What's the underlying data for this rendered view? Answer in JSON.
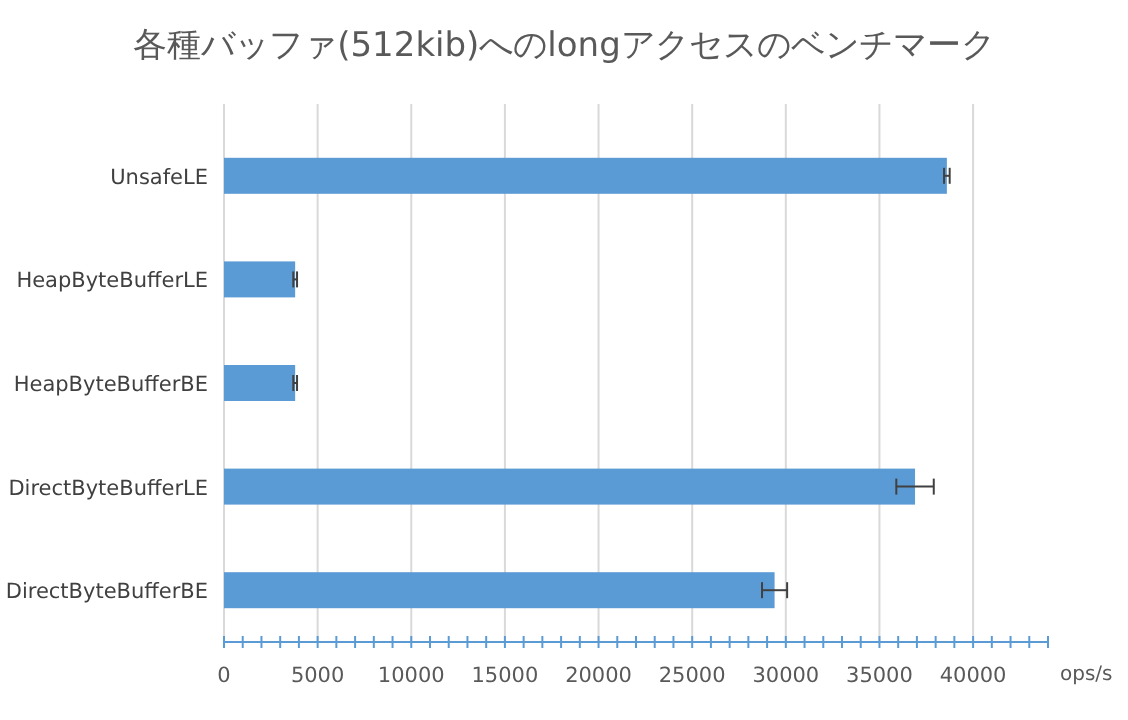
{
  "chart_data": {
    "type": "bar",
    "orientation": "horizontal",
    "title": "各種バッファ(512kib)へのlongアクセスのベンチマーク",
    "xlabel": "ops/s",
    "categories": [
      "UnsafeLE",
      "HeapByteBufferLE",
      "HeapByteBufferBE",
      "DirectByteBufferLE",
      "DirectByteBufferBE"
    ],
    "values": [
      38600,
      3800,
      3800,
      36900,
      29400
    ],
    "errors": [
      150,
      100,
      100,
      1000,
      670
    ],
    "color": "#5b9bd5",
    "xlim": [
      0,
      44000
    ],
    "xticks": [
      0,
      {
        "value": 1000,
        "label": null
      },
      {
        "value": 2000,
        "label": null
      },
      {
        "value": 3000,
        "label": null
      },
      {
        "value": 4000,
        "label": null
      },
      5000,
      {
        "value": 6000,
        "label": null
      },
      {
        "value": 7000,
        "label": null
      },
      {
        "value": 8000,
        "label": null
      },
      {
        "value": 9000,
        "label": null
      },
      10000,
      {
        "value": 11000,
        "label": null
      },
      {
        "value": 12000,
        "label": null
      },
      {
        "value": 13000,
        "label": null
      },
      {
        "value": 14000,
        "label": null
      },
      15000,
      {
        "value": 16000,
        "label": null
      },
      {
        "value": 17000,
        "label": null
      },
      {
        "value": 18000,
        "label": null
      },
      {
        "value": 19000,
        "label": null
      },
      20000,
      {
        "value": 21000,
        "label": null
      },
      {
        "value": 22000,
        "label": null
      },
      {
        "value": 23000,
        "label": null
      },
      {
        "value": 24000,
        "label": null
      },
      25000,
      {
        "value": 26000,
        "label": null
      },
      {
        "value": 27000,
        "label": null
      },
      {
        "value": 28000,
        "label": null
      },
      {
        "value": 29000,
        "label": null
      },
      30000,
      {
        "value": 31000,
        "label": null
      },
      {
        "value": 32000,
        "label": null
      },
      {
        "value": 33000,
        "label": null
      },
      {
        "value": 34000,
        "label": null
      },
      35000,
      {
        "value": 36000,
        "label": null
      },
      {
        "value": 37000,
        "label": null
      },
      {
        "value": 38000,
        "label": null
      },
      {
        "value": 39000,
        "label": null
      },
      40000,
      {
        "value": 41000,
        "label": null
      },
      {
        "value": 42000,
        "label": null
      },
      {
        "value": 43000,
        "label": null
      },
      {
        "value": 44000,
        "label": null
      }
    ],
    "grid": "x"
  }
}
